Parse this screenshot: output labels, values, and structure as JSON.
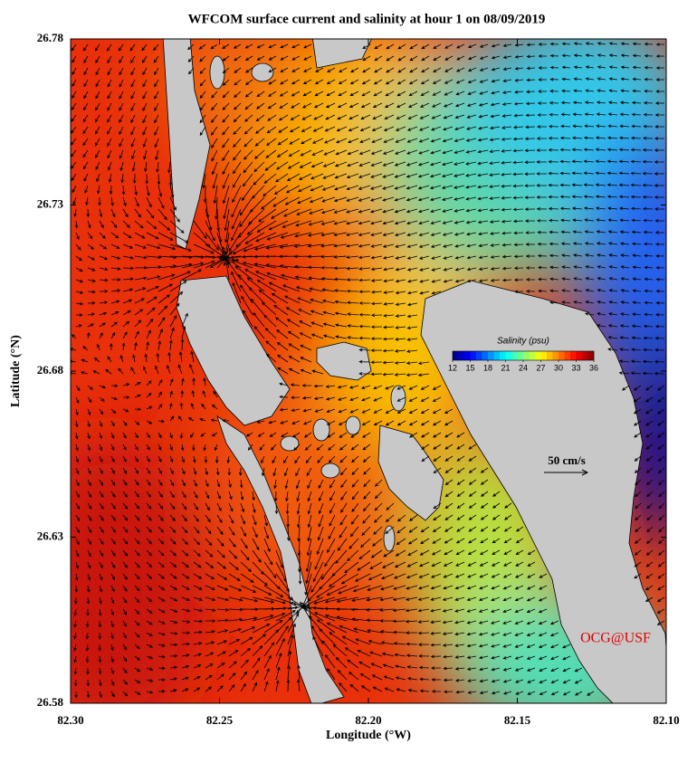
{
  "map": {
    "title": "WFCOM surface current and salinity at hour 1 on 08/09/2019",
    "xlabel": "Longitude (°W)",
    "ylabel": "Latitude (°N)",
    "xlim": [
      82.3,
      82.1
    ],
    "ylim": [
      26.58,
      26.78
    ],
    "xticks": [
      {
        "value": 82.3,
        "label": "82.30"
      },
      82.25,
      {
        "value": 82.2,
        "label": "82.20"
      },
      82.15,
      {
        "value": 82.1,
        "label": "82.10"
      }
    ],
    "yticks": [
      26.58,
      26.63,
      26.68,
      26.73,
      26.78
    ],
    "colorbar": {
      "title": "Salinity (psu)",
      "range": [
        12,
        36
      ],
      "ticks": [
        12,
        15,
        18,
        21,
        24,
        27,
        30,
        33,
        36
      ]
    },
    "scale_label": "50 cm/s",
    "credit": "OCG@USF"
  }
}
